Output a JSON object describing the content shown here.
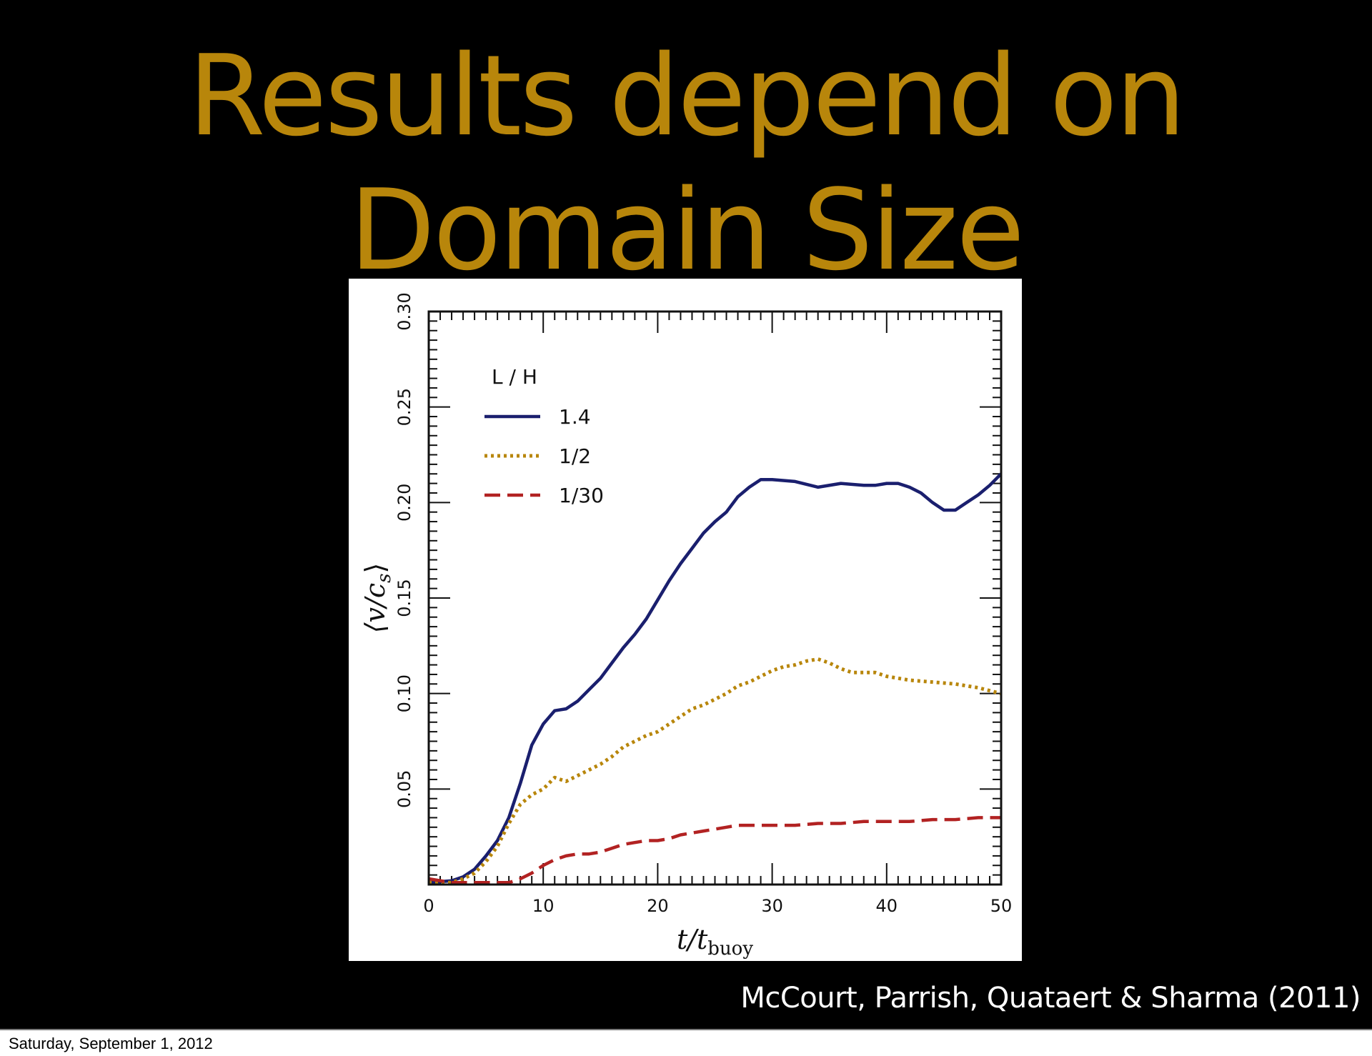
{
  "slide": {
    "title_line1": "Results depend on",
    "title_line2": "Domain Size",
    "citation": "McCourt, Parrish, Quataert & Sharma (2011)",
    "footer_date": "Saturday, September 1, 2012",
    "title_color": "#b8860b",
    "background_color": "#000000"
  },
  "chart_data": {
    "type": "line",
    "title": "",
    "xlabel": "t/t_buoy",
    "ylabel": "⟨v/c_s⟩",
    "xlim": [
      0,
      50
    ],
    "ylim": [
      0,
      0.3
    ],
    "xticks": [
      "0",
      "10",
      "20",
      "30",
      "40",
      "50"
    ],
    "yticks": [
      "0.05",
      "0.10",
      "0.15",
      "0.20",
      "0.25",
      "0.30"
    ],
    "legend_title": "L / H",
    "legend_position": "top-left",
    "grid": false,
    "series": [
      {
        "name": "1.4",
        "color": "#1a1f6e",
        "style": "solid",
        "x": [
          0,
          2,
          3,
          4,
          5,
          6,
          7,
          8,
          9,
          10,
          11,
          12,
          13,
          14,
          15,
          16,
          17,
          18,
          19,
          20,
          21,
          22,
          23,
          24,
          25,
          26,
          27,
          28,
          29,
          30,
          32,
          34,
          36,
          38,
          39,
          40,
          41,
          42,
          43,
          44,
          45,
          46,
          47,
          48,
          49,
          50
        ],
        "y": [
          0.001,
          0.002,
          0.004,
          0.008,
          0.015,
          0.023,
          0.035,
          0.053,
          0.073,
          0.084,
          0.091,
          0.092,
          0.096,
          0.102,
          0.108,
          0.116,
          0.124,
          0.131,
          0.139,
          0.149,
          0.159,
          0.168,
          0.176,
          0.184,
          0.19,
          0.195,
          0.203,
          0.208,
          0.212,
          0.212,
          0.211,
          0.208,
          0.21,
          0.209,
          0.209,
          0.21,
          0.21,
          0.208,
          0.205,
          0.2,
          0.196,
          0.196,
          0.2,
          0.204,
          0.209,
          0.215
        ]
      },
      {
        "name": "1/2",
        "color": "#b8860b",
        "style": "dotted",
        "x": [
          0,
          2,
          3,
          4,
          5,
          6,
          7,
          8,
          9,
          10,
          11,
          12,
          13,
          14,
          15,
          16,
          17,
          18,
          19,
          20,
          21,
          22,
          23,
          24,
          25,
          26,
          27,
          28,
          29,
          30,
          31,
          32,
          33,
          34,
          35,
          36,
          37,
          38,
          39,
          40,
          42,
          44,
          46,
          48,
          50
        ],
        "y": [
          0.001,
          0.001,
          0.003,
          0.006,
          0.012,
          0.02,
          0.032,
          0.042,
          0.047,
          0.05,
          0.056,
          0.054,
          0.057,
          0.06,
          0.063,
          0.067,
          0.072,
          0.075,
          0.078,
          0.08,
          0.084,
          0.088,
          0.092,
          0.094,
          0.097,
          0.1,
          0.104,
          0.106,
          0.109,
          0.112,
          0.114,
          0.115,
          0.117,
          0.118,
          0.116,
          0.113,
          0.111,
          0.111,
          0.111,
          0.109,
          0.107,
          0.106,
          0.105,
          0.103,
          0.1
        ]
      },
      {
        "name": "1/30",
        "color": "#b22222",
        "style": "dashed",
        "x": [
          0,
          2,
          4,
          6,
          7,
          8,
          9,
          10,
          11,
          12,
          13,
          14,
          15,
          16,
          17,
          18,
          19,
          20,
          21,
          22,
          23,
          24,
          25,
          26,
          27,
          28,
          30,
          32,
          34,
          36,
          38,
          40,
          42,
          44,
          46,
          48,
          50
        ],
        "y": [
          0.003,
          0.001,
          0.001,
          0.001,
          0.001,
          0.003,
          0.006,
          0.01,
          0.013,
          0.015,
          0.016,
          0.016,
          0.017,
          0.019,
          0.021,
          0.022,
          0.023,
          0.023,
          0.024,
          0.026,
          0.027,
          0.028,
          0.029,
          0.03,
          0.031,
          0.031,
          0.031,
          0.031,
          0.032,
          0.032,
          0.033,
          0.033,
          0.033,
          0.034,
          0.034,
          0.035,
          0.035
        ]
      }
    ]
  }
}
